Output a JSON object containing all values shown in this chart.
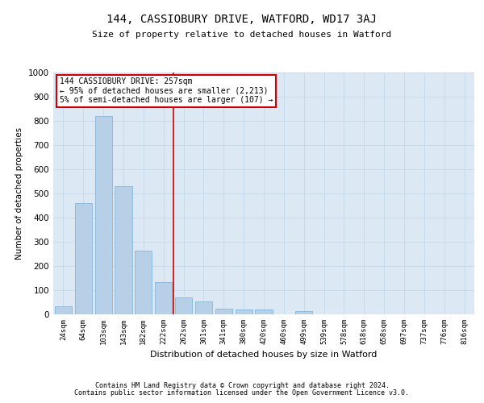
{
  "title": "144, CASSIOBURY DRIVE, WATFORD, WD17 3AJ",
  "subtitle": "Size of property relative to detached houses in Watford",
  "xlabel": "Distribution of detached houses by size in Watford",
  "ylabel": "Number of detached properties",
  "footer1": "Contains HM Land Registry data © Crown copyright and database right 2024.",
  "footer2": "Contains public sector information licensed under the Open Government Licence v3.0.",
  "bar_color": "#b8cfe8",
  "bar_edge_color": "#7aafd4",
  "grid_color": "#c5d9ea",
  "background_color": "#dce9f5",
  "annotation_box_color": "#ffffff",
  "annotation_box_edge": "#cc0000",
  "vline_color": "#cc0000",
  "annotation_title": "144 CASSIOBURY DRIVE: 257sqm",
  "annotation_line1": "← 95% of detached houses are smaller (2,213)",
  "annotation_line2": "5% of semi-detached houses are larger (107) →",
  "categories": [
    "24sqm",
    "64sqm",
    "103sqm",
    "143sqm",
    "182sqm",
    "222sqm",
    "262sqm",
    "301sqm",
    "341sqm",
    "380sqm",
    "420sqm",
    "460sqm",
    "499sqm",
    "539sqm",
    "578sqm",
    "618sqm",
    "658sqm",
    "697sqm",
    "737sqm",
    "776sqm",
    "816sqm"
  ],
  "values": [
    35,
    460,
    820,
    530,
    265,
    135,
    70,
    55,
    25,
    20,
    20,
    0,
    15,
    0,
    0,
    0,
    0,
    0,
    0,
    0,
    0
  ],
  "ylim": [
    0,
    1000
  ],
  "yticks": [
    0,
    100,
    200,
    300,
    400,
    500,
    600,
    700,
    800,
    900,
    1000
  ]
}
